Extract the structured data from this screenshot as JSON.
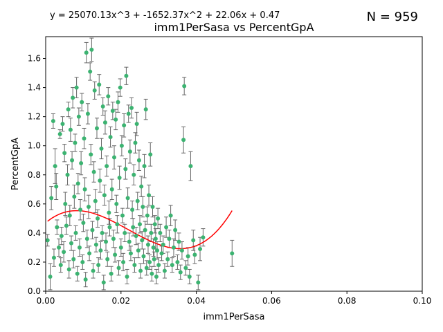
{
  "chart_data": {
    "type": "scatter",
    "title": "imm1PerSasa vs PercentGpA",
    "xlabel": "imm1PerSasa",
    "ylabel": "PercentGpA",
    "fit_equation": "y = 25070.13x^3 + -1652.37x^2 + 22.06x + 0.47",
    "n_label": "N = 959",
    "xlim": [
      0,
      0.1
    ],
    "ylim": [
      0,
      1.75
    ],
    "x_ticks": [
      "0.00",
      "0.02",
      "0.04",
      "0.06",
      "0.08",
      "0.10"
    ],
    "y_ticks": [
      "0.0",
      "0.2",
      "0.4",
      "0.6",
      "0.8",
      "1.0",
      "1.2",
      "1.4",
      "1.6"
    ],
    "grid": false,
    "colors": {
      "points": "#3cb371",
      "errorbars": "#666666",
      "fit": "#ff0000"
    },
    "fit_coefficients": [
      25070.13,
      -1652.37,
      22.06,
      0.47
    ],
    "points_description_count": 959,
    "points": [
      [
        0.0005,
        0.35,
        0.04
      ],
      [
        0.0012,
        0.1,
        0.09
      ],
      [
        0.0015,
        0.64,
        0.08
      ],
      [
        0.002,
        1.17,
        0.05
      ],
      [
        0.0022,
        0.23,
        0.06
      ],
      [
        0.0025,
        0.86,
        0.12
      ],
      [
        0.0028,
        0.72,
        0.09
      ],
      [
        0.003,
        0.44,
        0.05
      ],
      [
        0.0035,
        0.3,
        0.06
      ],
      [
        0.0038,
        1.08,
        0.03
      ],
      [
        0.004,
        0.18,
        0.05
      ],
      [
        0.0042,
        0.38,
        0.06
      ],
      [
        0.0045,
        1.15,
        0.05
      ],
      [
        0.0048,
        0.27,
        0.07
      ],
      [
        0.005,
        0.95,
        0.06
      ],
      [
        0.0052,
        0.6,
        0.08
      ],
      [
        0.0055,
        0.45,
        0.06
      ],
      [
        0.0058,
        0.8,
        0.07
      ],
      [
        0.006,
        1.25,
        0.05
      ],
      [
        0.0062,
        0.15,
        0.06
      ],
      [
        0.0064,
        0.52,
        0.07
      ],
      [
        0.0066,
        1.11,
        0.08
      ],
      [
        0.0068,
        0.33,
        0.05
      ],
      [
        0.007,
        0.9,
        0.06
      ],
      [
        0.0072,
        1.33,
        0.07
      ],
      [
        0.0074,
        0.22,
        0.06
      ],
      [
        0.0076,
        0.65,
        0.08
      ],
      [
        0.0078,
        1.02,
        0.06
      ],
      [
        0.008,
        0.4,
        0.05
      ],
      [
        0.0082,
        1.4,
        0.07
      ],
      [
        0.0084,
        0.12,
        0.05
      ],
      [
        0.0086,
        0.74,
        0.07
      ],
      [
        0.0088,
        1.2,
        0.06
      ],
      [
        0.009,
        0.3,
        0.06
      ],
      [
        0.0092,
        0.56,
        0.07
      ],
      [
        0.0094,
        0.88,
        0.08
      ],
      [
        0.0096,
        1.3,
        0.06
      ],
      [
        0.0098,
        0.2,
        0.05
      ],
      [
        0.01,
        0.47,
        0.06
      ],
      [
        0.0102,
        1.05,
        0.07
      ],
      [
        0.0104,
        0.7,
        0.08
      ],
      [
        0.0106,
        0.08,
        0.05
      ],
      [
        0.0108,
        1.64,
        0.07
      ],
      [
        0.011,
        0.36,
        0.06
      ],
      [
        0.0112,
        1.22,
        0.07
      ],
      [
        0.0114,
        0.58,
        0.08
      ],
      [
        0.0116,
        0.26,
        0.05
      ],
      [
        0.0118,
        1.51,
        0.06
      ],
      [
        0.012,
        0.94,
        0.07
      ],
      [
        0.0122,
        1.66,
        0.08
      ],
      [
        0.0124,
        0.42,
        0.06
      ],
      [
        0.0126,
        0.14,
        0.05
      ],
      [
        0.0128,
        0.82,
        0.07
      ],
      [
        0.013,
        1.38,
        0.06
      ],
      [
        0.0132,
        0.62,
        0.08
      ],
      [
        0.0134,
        0.32,
        0.05
      ],
      [
        0.0136,
        1.12,
        0.07
      ],
      [
        0.0138,
        0.5,
        0.06
      ],
      [
        0.014,
        0.18,
        0.05
      ],
      [
        0.0142,
        1.42,
        0.07
      ],
      [
        0.0144,
        0.76,
        0.08
      ],
      [
        0.0146,
        0.28,
        0.06
      ],
      [
        0.0148,
        0.98,
        0.07
      ],
      [
        0.015,
        0.4,
        0.05
      ],
      [
        0.0152,
        1.27,
        0.06
      ],
      [
        0.0154,
        0.06,
        0.05
      ],
      [
        0.0156,
        0.66,
        0.07
      ],
      [
        0.0158,
        1.16,
        0.08
      ],
      [
        0.016,
        0.34,
        0.06
      ],
      [
        0.0162,
        0.86,
        0.07
      ],
      [
        0.0164,
        0.22,
        0.05
      ],
      [
        0.0166,
        1.34,
        0.06
      ],
      [
        0.0168,
        0.54,
        0.08
      ],
      [
        0.017,
        0.44,
        0.06
      ],
      [
        0.0172,
        1.06,
        0.07
      ],
      [
        0.0174,
        0.12,
        0.05
      ],
      [
        0.0176,
        0.7,
        0.07
      ],
      [
        0.0178,
        1.24,
        0.06
      ],
      [
        0.018,
        0.36,
        0.06
      ],
      [
        0.0182,
        0.92,
        0.08
      ],
      [
        0.0184,
        0.25,
        0.05
      ],
      [
        0.0186,
        1.18,
        0.07
      ],
      [
        0.0188,
        0.6,
        0.06
      ],
      [
        0.019,
        0.46,
        0.06
      ],
      [
        0.0192,
        1.3,
        0.07
      ],
      [
        0.0194,
        0.16,
        0.05
      ],
      [
        0.0196,
        0.78,
        0.08
      ],
      [
        0.0198,
        1.4,
        0.06
      ],
      [
        0.02,
        0.3,
        0.06
      ],
      [
        0.0202,
        1.0,
        0.07
      ],
      [
        0.0204,
        0.52,
        0.05
      ],
      [
        0.0206,
        0.2,
        0.06
      ],
      [
        0.0208,
        1.14,
        0.08
      ],
      [
        0.021,
        0.4,
        0.06
      ],
      [
        0.0212,
        0.84,
        0.07
      ],
      [
        0.0214,
        1.48,
        0.06
      ],
      [
        0.0216,
        0.1,
        0.05
      ],
      [
        0.0218,
        0.64,
        0.07
      ],
      [
        0.022,
        1.22,
        0.06
      ],
      [
        0.0222,
        0.34,
        0.06
      ],
      [
        0.0224,
        0.96,
        0.08
      ],
      [
        0.0226,
        0.26,
        0.05
      ],
      [
        0.0228,
        1.26,
        0.07
      ],
      [
        0.023,
        0.56,
        0.06
      ],
      [
        0.0232,
        0.44,
        0.06
      ],
      [
        0.0234,
        0.8,
        0.07
      ],
      [
        0.0236,
        0.18,
        0.05
      ],
      [
        0.0238,
        1.02,
        0.07
      ],
      [
        0.024,
        0.38,
        0.06
      ],
      [
        0.0242,
        1.15,
        0.08
      ],
      [
        0.0244,
        0.62,
        0.06
      ],
      [
        0.0246,
        0.28,
        0.05
      ],
      [
        0.0248,
        0.9,
        0.07
      ],
      [
        0.025,
        0.46,
        0.06
      ],
      [
        0.0252,
        0.14,
        0.05
      ],
      [
        0.0254,
        0.72,
        0.07
      ],
      [
        0.0256,
        0.35,
        0.06
      ],
      [
        0.0258,
        0.58,
        0.07
      ],
      [
        0.026,
        0.24,
        0.05
      ],
      [
        0.0262,
        0.86,
        0.08
      ],
      [
        0.0264,
        0.42,
        0.06
      ],
      [
        0.0266,
        1.25,
        0.07
      ],
      [
        0.0268,
        0.16,
        0.05
      ],
      [
        0.027,
        0.52,
        0.06
      ],
      [
        0.0272,
        0.32,
        0.06
      ],
      [
        0.0274,
        0.66,
        0.07
      ],
      [
        0.0276,
        0.2,
        0.05
      ],
      [
        0.0278,
        0.94,
        0.08
      ],
      [
        0.028,
        0.4,
        0.06
      ],
      [
        0.0282,
        0.12,
        0.05
      ],
      [
        0.0284,
        0.58,
        0.07
      ],
      [
        0.0286,
        0.3,
        0.06
      ],
      [
        0.0288,
        0.22,
        0.05
      ],
      [
        0.029,
        0.46,
        0.06
      ],
      [
        0.0292,
        0.36,
        0.07
      ],
      [
        0.0294,
        0.1,
        0.05
      ],
      [
        0.0296,
        0.28,
        0.06
      ],
      [
        0.0298,
        0.5,
        0.07
      ],
      [
        0.03,
        0.18,
        0.05
      ],
      [
        0.0304,
        0.4,
        0.06
      ],
      [
        0.0308,
        0.26,
        0.05
      ],
      [
        0.0312,
        0.32,
        0.06
      ],
      [
        0.0316,
        0.14,
        0.05
      ],
      [
        0.032,
        0.44,
        0.07
      ],
      [
        0.0324,
        0.22,
        0.05
      ],
      [
        0.0328,
        0.36,
        0.06
      ],
      [
        0.0332,
        0.52,
        0.07
      ],
      [
        0.0336,
        0.18,
        0.05
      ],
      [
        0.034,
        0.3,
        0.06
      ],
      [
        0.0344,
        0.42,
        0.07
      ],
      [
        0.035,
        0.2,
        0.05
      ],
      [
        0.0354,
        0.34,
        0.06
      ],
      [
        0.0358,
        0.13,
        0.05
      ],
      [
        0.0362,
        0.28,
        0.06
      ],
      [
        0.0366,
        1.04,
        0.09
      ],
      [
        0.0368,
        1.41,
        0.06
      ],
      [
        0.0372,
        0.16,
        0.05
      ],
      [
        0.0378,
        0.24,
        0.06
      ],
      [
        0.0382,
        0.1,
        0.05
      ],
      [
        0.0385,
        0.86,
        0.1
      ],
      [
        0.0392,
        0.35,
        0.07
      ],
      [
        0.0396,
        0.25,
        0.06
      ],
      [
        0.0405,
        0.06,
        0.05
      ],
      [
        0.041,
        0.29,
        0.08
      ],
      [
        0.0418,
        0.37,
        0.06
      ],
      [
        0.0495,
        0.26,
        0.09
      ]
    ]
  }
}
